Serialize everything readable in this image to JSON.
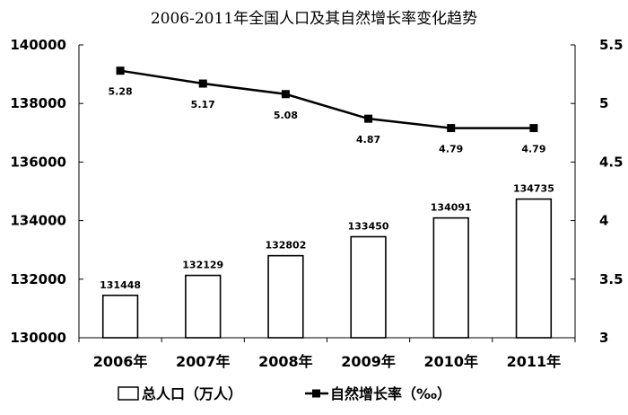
{
  "chart_data": {
    "type": "bar+line",
    "title": "2006-2011年全国人口及其自然增长率变化趋势",
    "categories": [
      "2006年",
      "2007年",
      "2008年",
      "2009年",
      "2010年",
      "2011年"
    ],
    "series": [
      {
        "name": "总人口（万人）",
        "type": "bar",
        "axis": "left",
        "values": [
          131448,
          132129,
          132802,
          133450,
          134091,
          134735
        ]
      },
      {
        "name": "自然增长率（‰）",
        "type": "line",
        "axis": "right",
        "values": [
          5.28,
          5.17,
          5.08,
          4.87,
          4.79,
          4.79
        ]
      }
    ],
    "y_left": {
      "min": 130000,
      "max": 140000,
      "step": 2000,
      "ticks": [
        "130000",
        "132000",
        "134000",
        "136000",
        "138000",
        "140000"
      ]
    },
    "y_right": {
      "min": 3,
      "max": 5.5,
      "step": 0.5,
      "ticks": [
        "3",
        "3.5",
        "4",
        "4.5",
        "5",
        "5.5"
      ]
    },
    "bar_labels": [
      "131448",
      "132129",
      "132802",
      "133450",
      "134091",
      "134735"
    ],
    "line_labels": [
      "5.28",
      "5.17",
      "5.08",
      "4.87",
      "4.79",
      "4.79"
    ],
    "legend": [
      "总人口（万人）",
      "自然增长率（‰）"
    ],
    "legend_position": "bottom",
    "grid": false,
    "colors": {
      "bar_fill": "#ffffff",
      "bar_stroke": "#000000",
      "line": "#000000",
      "axis": "#000000"
    }
  }
}
